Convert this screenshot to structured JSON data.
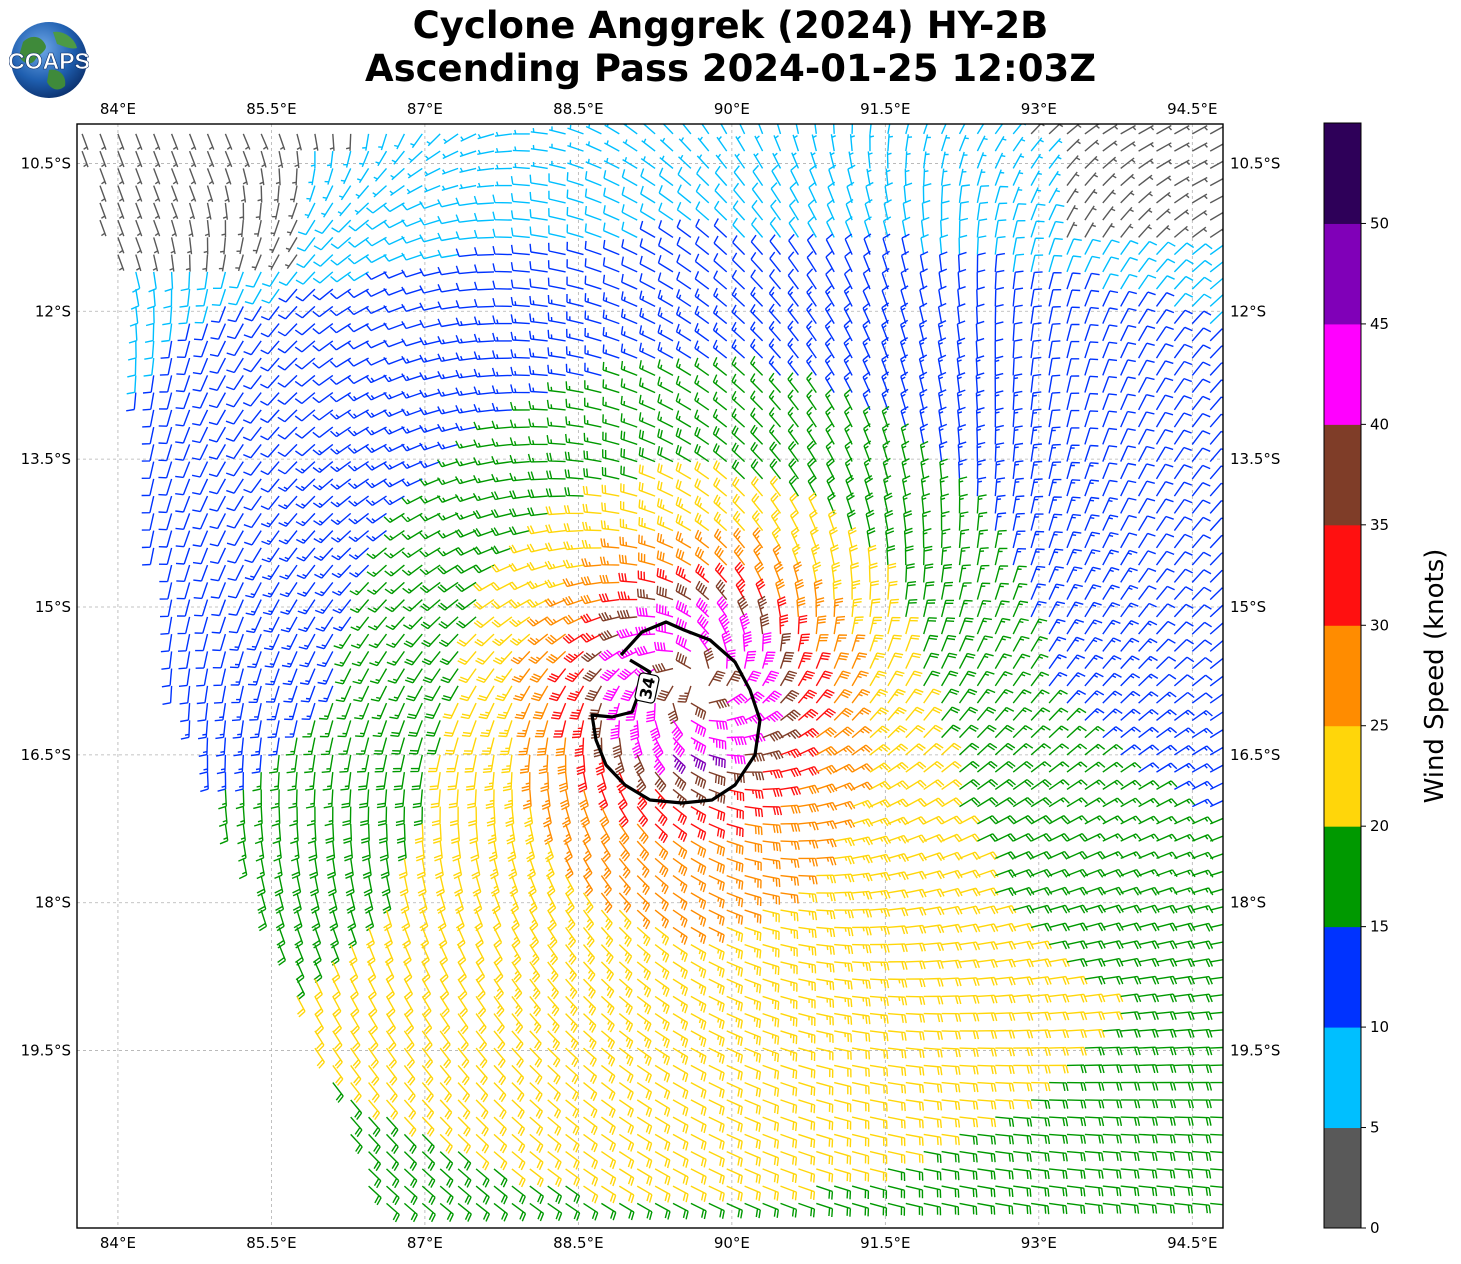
{
  "title": {
    "line1": "Cyclone Anggrek (2024) HY-2B",
    "line2": "Ascending Pass 2024-01-25 12:03Z"
  },
  "logo": {
    "text": "COAPS",
    "icon": "globe-icon"
  },
  "map": {
    "lon_range": [
      83.6,
      94.8
    ],
    "lat_range": [
      -21.3,
      -10.1
    ],
    "lon_ticks": [
      "84°E",
      "85.5°E",
      "87°E",
      "88.5°E",
      "90°E",
      "91.5°E",
      "93°E",
      "94.5°E"
    ],
    "lon_tick_values": [
      84,
      85.5,
      87,
      88.5,
      90,
      91.5,
      93,
      94.5
    ],
    "lat_ticks": [
      "10.5°S",
      "12°S",
      "13.5°S",
      "15°S",
      "16.5°S",
      "18°S",
      "19.5°S"
    ],
    "lat_tick_values": [
      -10.5,
      -12,
      -13.5,
      -15,
      -16.5,
      -18,
      -19.5
    ],
    "grid": true,
    "cyclone_center": {
      "lon": 89.6,
      "lat": -15.8
    },
    "contour": {
      "label": "34",
      "units": "knots"
    }
  },
  "colorbar": {
    "title": "Wind Speed (knots)",
    "ticks": [
      "0",
      "5",
      "10",
      "15",
      "20",
      "25",
      "30",
      "35",
      "40",
      "45",
      "50"
    ],
    "bins": [
      {
        "from": 0,
        "to": 5,
        "color": "#595959"
      },
      {
        "from": 5,
        "to": 10,
        "color": "#00bfff"
      },
      {
        "from": 10,
        "to": 15,
        "color": "#0033ff"
      },
      {
        "from": 15,
        "to": 20,
        "color": "#009900"
      },
      {
        "from": 20,
        "to": 25,
        "color": "#ffd60a"
      },
      {
        "from": 25,
        "to": 30,
        "color": "#ff8c00"
      },
      {
        "from": 30,
        "to": 35,
        "color": "#ff1010"
      },
      {
        "from": 35,
        "to": 40,
        "color": "#7f3d28"
      },
      {
        "from": 40,
        "to": 45,
        "color": "#ff00ff"
      },
      {
        "from": 45,
        "to": 50,
        "color": "#8000b8"
      },
      {
        "from": 50,
        "to": 55,
        "color": "#2e0059"
      }
    ]
  }
}
